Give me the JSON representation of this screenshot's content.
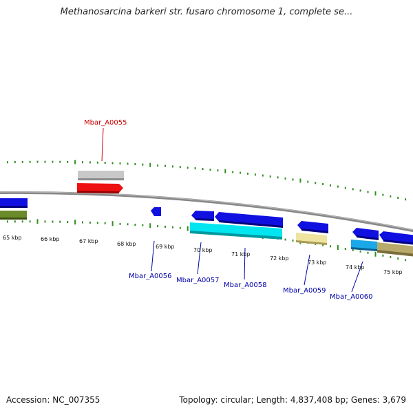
{
  "title": "Methanosarcina barkeri str. fusaro chromosome 1, complete se...",
  "footer": {
    "accession": "Accession: NC_007355",
    "summary": "Topology: circular; Length: 4,837,408 bp; Genes: 3,679"
  },
  "colors": {
    "backbone": "#888888",
    "tick": "#2f8f1f",
    "label_forward": "#cc0000",
    "label_reverse": "#0000aa",
    "blue_gene": "#1010e0",
    "cyan_gene": "#00e5f0",
    "gray_gene": "#c8c8c8",
    "red_gene": "#ee1111",
    "olive_gene": "#6b8a2a",
    "khaki_gene": "#efe3a0",
    "tan_gene": "#b8aa6a",
    "skyblue_gene": "#1aa8e8"
  },
  "chart_data": {
    "type": "genome-map",
    "sequence_unit": "kbp",
    "tick_labels": [
      "65 kbp",
      "66 kbp",
      "67 kbp",
      "68 kbp",
      "69 kbp",
      "70 kbp",
      "71 kbp",
      "72 kbp",
      "73 kbp",
      "74 kbp",
      "75 kbp"
    ],
    "gene_labels": [
      {
        "name": "Mbar_A0055",
        "strand": "forward"
      },
      {
        "name": "Mbar_A0056",
        "strand": "reverse"
      },
      {
        "name": "Mbar_A0057",
        "strand": "reverse"
      },
      {
        "name": "Mbar_A0058",
        "strand": "reverse"
      },
      {
        "name": "Mbar_A0059",
        "strand": "reverse"
      },
      {
        "name": "Mbar_A0060",
        "strand": "reverse"
      }
    ]
  }
}
